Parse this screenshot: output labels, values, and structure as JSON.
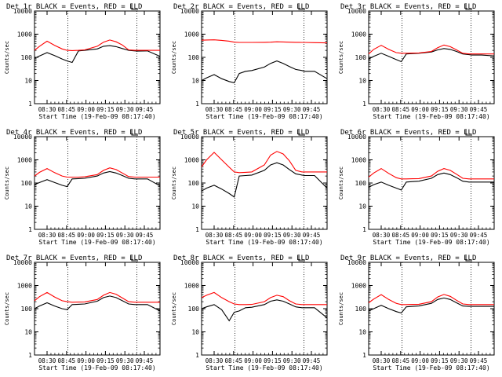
{
  "chart_data": [
    {
      "type": "line",
      "title": "Det 1r BLACK = Events, RED = LLD",
      "ylabel": "Counts/sec",
      "xlabel": "Start Time (19-Feb-09 08:17:40)",
      "xticks": [
        "08:30",
        "08:45",
        "09:00",
        "09:15",
        "09:30",
        "09:45"
      ],
      "yticks": [
        "1",
        "10",
        "100",
        "1000",
        "10000"
      ],
      "ylim": [
        1,
        10000
      ],
      "yscale": "log",
      "x": [
        0,
        0.04,
        0.1,
        0.16,
        0.22,
        0.26,
        0.3,
        0.35,
        0.4,
        0.5,
        0.55,
        0.6,
        0.65,
        0.7,
        0.75,
        0.8,
        0.82,
        0.9,
        1.0
      ],
      "series": [
        {
          "name": "BLACK = Events",
          "color": "#000000",
          "values": [
            90,
            115,
            160,
            120,
            85,
            70,
            60,
            190,
            200,
            230,
            300,
            320,
            290,
            240,
            200,
            190,
            185,
            190,
            110
          ]
        },
        {
          "name": "RED = LLD",
          "color": "#ff0000",
          "values": [
            200,
            300,
            500,
            330,
            230,
            200,
            195,
            200,
            210,
            300,
            450,
            560,
            470,
            340,
            210,
            200,
            200,
            200,
            200
          ]
        }
      ],
      "markers": [
        0.265,
        0.815
      ]
    },
    {
      "type": "line",
      "title": "Det 2r BLACK = Events, RED = LLD",
      "ylabel": "Counts/sec",
      "xlabel": "Start Time (19-Feb-09 08:17:40)",
      "xticks": [
        "08:30",
        "08:45",
        "09:00",
        "09:15",
        "09:30",
        "09:45"
      ],
      "yticks": [
        "1",
        "10",
        "100",
        "1000",
        "10000"
      ],
      "ylim": [
        1,
        10000
      ],
      "yscale": "log",
      "x": [
        0,
        0.04,
        0.1,
        0.16,
        0.22,
        0.26,
        0.3,
        0.35,
        0.4,
        0.5,
        0.55,
        0.6,
        0.65,
        0.7,
        0.75,
        0.8,
        0.82,
        0.9,
        1.0
      ],
      "series": [
        {
          "name": "BLACK = Events",
          "color": "#000000",
          "values": [
            10,
            13,
            18,
            12,
            9,
            8,
            20,
            25,
            27,
            38,
            55,
            70,
            55,
            40,
            30,
            27,
            25,
            25,
            12
          ]
        },
        {
          "name": "RED = LLD",
          "color": "#ff0000",
          "values": [
            550,
            560,
            570,
            540,
            500,
            450,
            440,
            440,
            440,
            445,
            450,
            470,
            460,
            450,
            445,
            440,
            440,
            430,
            420
          ]
        }
      ],
      "markers": [
        0.265,
        0.815
      ]
    },
    {
      "type": "line",
      "title": "Det 3r BLACK = Events, RED = LLD",
      "ylabel": "Counts/sec",
      "xlabel": "Start Time (19-Feb-09 08:17:40)",
      "xticks": [
        "08:30",
        "08:45",
        "09:00",
        "09:15",
        "09:30",
        "09:45"
      ],
      "yticks": [
        "1",
        "10",
        "100",
        "1000",
        "10000"
      ],
      "ylim": [
        1,
        10000
      ],
      "yscale": "log",
      "x": [
        0,
        0.04,
        0.1,
        0.16,
        0.22,
        0.26,
        0.3,
        0.35,
        0.4,
        0.5,
        0.55,
        0.6,
        0.65,
        0.7,
        0.75,
        0.8,
        0.82,
        0.9,
        1.0
      ],
      "series": [
        {
          "name": "BLACK = Events",
          "color": "#000000",
          "values": [
            85,
            110,
            150,
            110,
            80,
            65,
            140,
            145,
            150,
            170,
            210,
            240,
            220,
            180,
            140,
            130,
            125,
            125,
            115
          ]
        },
        {
          "name": "RED = LLD",
          "color": "#ff0000",
          "values": [
            140,
            220,
            330,
            220,
            160,
            150,
            150,
            152,
            155,
            180,
            260,
            340,
            290,
            210,
            150,
            140,
            140,
            140,
            140
          ]
        }
      ],
      "markers": [
        0.265,
        0.815
      ]
    },
    {
      "type": "line",
      "title": "Det 4r BLACK = Events, RED = LLD",
      "ylabel": "Counts/sec",
      "xlabel": "Start Time (19-Feb-09 08:17:40)",
      "xticks": [
        "08:30",
        "08:45",
        "09:00",
        "09:15",
        "09:30",
        "09:45"
      ],
      "yticks": [
        "1",
        "10",
        "100",
        "1000",
        "10000"
      ],
      "ylim": [
        1,
        10000
      ],
      "yscale": "log",
      "x": [
        0,
        0.04,
        0.1,
        0.16,
        0.22,
        0.26,
        0.3,
        0.35,
        0.4,
        0.5,
        0.55,
        0.6,
        0.65,
        0.7,
        0.75,
        0.8,
        0.82,
        0.9,
        1.0
      ],
      "series": [
        {
          "name": "BLACK = Events",
          "color": "#000000",
          "values": [
            85,
            105,
            140,
            105,
            80,
            70,
            150,
            155,
            160,
            200,
            270,
            310,
            270,
            210,
            160,
            150,
            150,
            150,
            75
          ]
        },
        {
          "name": "RED = LLD",
          "color": "#ff0000",
          "values": [
            200,
            290,
            420,
            280,
            200,
            180,
            180,
            180,
            185,
            230,
            350,
            450,
            380,
            270,
            190,
            180,
            180,
            180,
            180
          ]
        }
      ],
      "markers": [
        0.265,
        0.815
      ]
    },
    {
      "type": "line",
      "title": "Det 5r BLACK = Events, RED = LLD",
      "ylabel": "Counts/sec",
      "xlabel": "Start Time (19-Feb-09 08:17:40)",
      "xticks": [
        "08:30",
        "08:45",
        "09:00",
        "09:15",
        "09:30",
        "09:45"
      ],
      "yticks": [
        "1",
        "10",
        "100",
        "1000",
        "10000"
      ],
      "ylim": [
        1,
        10000
      ],
      "yscale": "log",
      "x": [
        0,
        0.04,
        0.1,
        0.16,
        0.22,
        0.26,
        0.3,
        0.35,
        0.4,
        0.5,
        0.55,
        0.6,
        0.65,
        0.7,
        0.75,
        0.8,
        0.82,
        0.9,
        1.0
      ],
      "series": [
        {
          "name": "BLACK = Events",
          "color": "#000000",
          "values": [
            45,
            60,
            80,
            55,
            35,
            25,
            200,
            210,
            220,
            350,
            600,
            750,
            600,
            380,
            250,
            220,
            210,
            210,
            60
          ]
        },
        {
          "name": "RED = LLD",
          "color": "#ff0000",
          "values": [
            500,
            1000,
            2100,
            1000,
            480,
            300,
            280,
            290,
            300,
            600,
            1600,
            2300,
            1800,
            900,
            350,
            300,
            300,
            300,
            300
          ]
        }
      ],
      "markers": [
        0.265,
        0.815
      ]
    },
    {
      "type": "line",
      "title": "Det 6r BLACK = Events, RED = LLD",
      "ylabel": "Counts/sec",
      "xlabel": "Start Time (19-Feb-09 08:17:40)",
      "xticks": [
        "08:30",
        "08:45",
        "09:00",
        "09:15",
        "09:30",
        "09:45"
      ],
      "yticks": [
        "1",
        "10",
        "100",
        "1000",
        "10000"
      ],
      "ylim": [
        1,
        10000
      ],
      "yscale": "log",
      "x": [
        0,
        0.04,
        0.1,
        0.16,
        0.22,
        0.26,
        0.3,
        0.35,
        0.4,
        0.5,
        0.55,
        0.6,
        0.65,
        0.7,
        0.75,
        0.8,
        0.82,
        0.9,
        1.0
      ],
      "series": [
        {
          "name": "BLACK = Events",
          "color": "#000000",
          "values": [
            65,
            85,
            110,
            80,
            60,
            50,
            110,
            115,
            120,
            160,
            230,
            270,
            230,
            170,
            120,
            110,
            110,
            110,
            110
          ]
        },
        {
          "name": "RED = LLD",
          "color": "#ff0000",
          "values": [
            180,
            270,
            420,
            260,
            170,
            150,
            150,
            152,
            155,
            200,
            320,
            420,
            350,
            240,
            160,
            150,
            150,
            150,
            150
          ]
        }
      ],
      "markers": [
        0.265,
        0.815
      ]
    },
    {
      "type": "line",
      "title": "Det 7r BLACK = Events, RED = LLD",
      "ylabel": "Counts/sec",
      "xlabel": "Start Time (19-Feb-09 08:17:40)",
      "xticks": [
        "08:30",
        "08:45",
        "09:00",
        "09:15",
        "09:30",
        "09:45"
      ],
      "yticks": [
        "1",
        "10",
        "100",
        "1000",
        "10000"
      ],
      "ylim": [
        1,
        10000
      ],
      "yscale": "log",
      "x": [
        0,
        0.04,
        0.1,
        0.16,
        0.22,
        0.26,
        0.3,
        0.35,
        0.4,
        0.5,
        0.55,
        0.6,
        0.65,
        0.7,
        0.75,
        0.8,
        0.82,
        0.9,
        1.0
      ],
      "series": [
        {
          "name": "BLACK = Events",
          "color": "#000000",
          "values": [
            100,
            130,
            180,
            130,
            100,
            90,
            150,
            155,
            160,
            210,
            300,
            350,
            300,
            220,
            160,
            150,
            150,
            150,
            80
          ]
        },
        {
          "name": "RED = LLD",
          "color": "#ff0000",
          "values": [
            220,
            330,
            500,
            320,
            220,
            200,
            190,
            192,
            195,
            250,
            380,
            500,
            420,
            290,
            200,
            190,
            190,
            190,
            190
          ]
        }
      ],
      "markers": [
        0.265,
        0.815
      ]
    },
    {
      "type": "line",
      "title": "Det 8r BLACK = Events, RED = LLD",
      "ylabel": "Counts/sec",
      "xlabel": "Start Time (19-Feb-09 08:17:40)",
      "xticks": [
        "08:30",
        "08:45",
        "09:00",
        "09:15",
        "09:30",
        "09:45"
      ],
      "yticks": [
        "1",
        "10",
        "100",
        "1000",
        "10000"
      ],
      "ylim": [
        1,
        10000
      ],
      "yscale": "log",
      "x": [
        0,
        0.04,
        0.1,
        0.16,
        0.22,
        0.26,
        0.3,
        0.35,
        0.4,
        0.5,
        0.55,
        0.6,
        0.65,
        0.7,
        0.75,
        0.8,
        0.82,
        0.9,
        1.0
      ],
      "series": [
        {
          "name": "BLACK = Events",
          "color": "#000000",
          "values": [
            100,
            120,
            150,
            90,
            30,
            70,
            80,
            110,
            115,
            150,
            210,
            240,
            210,
            160,
            120,
            110,
            110,
            110,
            40
          ]
        },
        {
          "name": "RED = LLD",
          "color": "#ff0000",
          "values": [
            300,
            380,
            500,
            300,
            200,
            160,
            150,
            150,
            152,
            200,
            300,
            380,
            330,
            220,
            160,
            150,
            150,
            150,
            150
          ]
        }
      ],
      "markers": [
        0.265,
        0.815
      ]
    },
    {
      "type": "line",
      "title": "Det 9r BLACK = Events, RED = LLD",
      "ylabel": "Counts/sec",
      "xlabel": "Start Time (19-Feb-09 08:17:40)",
      "xticks": [
        "08:30",
        "08:45",
        "09:00",
        "09:15",
        "09:30",
        "09:45"
      ],
      "yticks": [
        "1",
        "10",
        "100",
        "1000",
        "10000"
      ],
      "ylim": [
        1,
        10000
      ],
      "yscale": "log",
      "x": [
        0,
        0.04,
        0.1,
        0.16,
        0.22,
        0.26,
        0.3,
        0.35,
        0.4,
        0.5,
        0.55,
        0.6,
        0.65,
        0.7,
        0.75,
        0.8,
        0.82,
        0.9,
        1.0
      ],
      "series": [
        {
          "name": "BLACK = Events",
          "color": "#000000",
          "values": [
            80,
            100,
            140,
            100,
            75,
            65,
            120,
            125,
            130,
            170,
            250,
            290,
            250,
            180,
            130,
            125,
            125,
            125,
            125
          ]
        },
        {
          "name": "RED = LLD",
          "color": "#ff0000",
          "values": [
            180,
            260,
            400,
            250,
            170,
            150,
            150,
            152,
            155,
            200,
            320,
            410,
            340,
            230,
            160,
            150,
            150,
            150,
            150
          ]
        }
      ],
      "markers": [
        0.265,
        0.815
      ]
    }
  ]
}
